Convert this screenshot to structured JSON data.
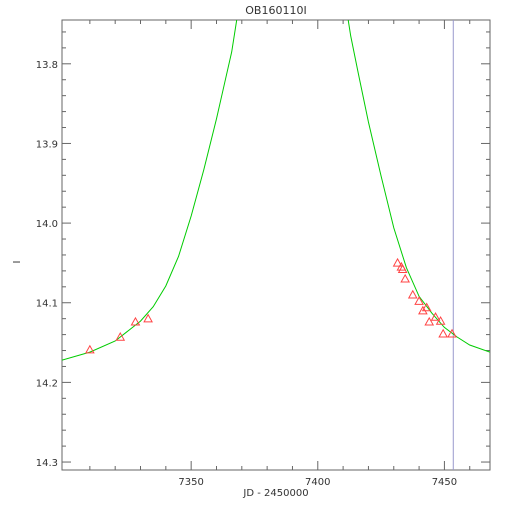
{
  "chart_data": {
    "type": "scatter",
    "title": "OB160110I",
    "xlabel": "JD - 2450000",
    "ylabel": "I",
    "xlim": [
      7299,
      7468
    ],
    "ylim": [
      14.31,
      13.745
    ],
    "y_axis_inverted": true,
    "x_ticks": [
      7350,
      7400,
      7450
    ],
    "x_tick_labels": [
      "7350",
      "7400",
      "7450"
    ],
    "y_ticks": [
      13.8,
      13.9,
      14.0,
      14.1,
      14.2,
      14.3
    ],
    "y_tick_labels": [
      "13.8",
      "13.9",
      "14.0",
      "14.1",
      "14.2",
      "14.3"
    ],
    "grid": false,
    "series": [
      {
        "kind": "points",
        "marker": "triangle",
        "color": "#ff4444",
        "points": [
          {
            "x": 7310.0,
            "y": 14.159
          },
          {
            "x": 7322.0,
            "y": 14.143
          },
          {
            "x": 7328.0,
            "y": 14.124
          },
          {
            "x": 7333.0,
            "y": 14.12
          },
          {
            "x": 7431.5,
            "y": 14.05
          },
          {
            "x": 7433.0,
            "y": 14.055
          },
          {
            "x": 7433.5,
            "y": 14.058
          },
          {
            "x": 7434.5,
            "y": 14.07
          },
          {
            "x": 7437.5,
            "y": 14.09
          },
          {
            "x": 7440.0,
            "y": 14.098
          },
          {
            "x": 7441.5,
            "y": 14.11
          },
          {
            "x": 7443.0,
            "y": 14.106
          },
          {
            "x": 7444.0,
            "y": 14.124
          },
          {
            "x": 7446.5,
            "y": 14.118
          },
          {
            "x": 7448.5,
            "y": 14.123
          },
          {
            "x": 7449.5,
            "y": 14.139
          },
          {
            "x": 7453.0,
            "y": 14.139
          }
        ]
      },
      {
        "kind": "model_curve",
        "color": "#00cc00",
        "points": [
          {
            "x": 7299,
            "y": 14.172
          },
          {
            "x": 7310,
            "y": 14.162
          },
          {
            "x": 7320,
            "y": 14.148
          },
          {
            "x": 7330,
            "y": 14.123
          },
          {
            "x": 7335,
            "y": 14.105
          },
          {
            "x": 7340,
            "y": 14.079
          },
          {
            "x": 7345,
            "y": 14.042
          },
          {
            "x": 7350,
            "y": 13.991
          },
          {
            "x": 7355,
            "y": 13.933
          },
          {
            "x": 7360,
            "y": 13.869
          },
          {
            "x": 7363,
            "y": 13.827
          },
          {
            "x": 7366,
            "y": 13.785
          },
          {
            "x": 7368,
            "y": 13.745
          },
          {
            "x": 7412,
            "y": 13.745
          },
          {
            "x": 7413,
            "y": 13.765
          },
          {
            "x": 7416,
            "y": 13.812
          },
          {
            "x": 7420,
            "y": 13.873
          },
          {
            "x": 7425,
            "y": 13.941
          },
          {
            "x": 7430,
            "y": 14.006
          },
          {
            "x": 7435,
            "y": 14.056
          },
          {
            "x": 7440,
            "y": 14.092
          },
          {
            "x": 7445,
            "y": 14.113
          },
          {
            "x": 7450,
            "y": 14.131
          },
          {
            "x": 7455,
            "y": 14.143
          },
          {
            "x": 7460,
            "y": 14.153
          },
          {
            "x": 7468,
            "y": 14.162
          }
        ]
      }
    ],
    "vertical_marker": {
      "x": 7453.5,
      "color": "#9999cc"
    }
  }
}
